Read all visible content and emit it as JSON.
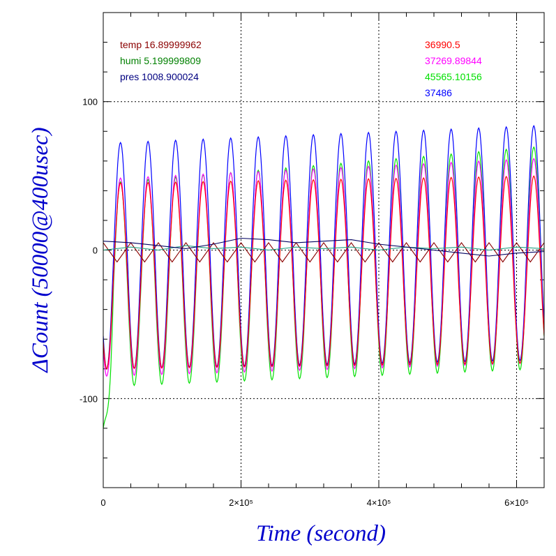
{
  "chart_data": {
    "type": "line",
    "xlabel": "Time (second)",
    "ylabel": "ΔCount (50000@400usec)",
    "xlim": [
      0,
      640000
    ],
    "ylim": [
      -160,
      160
    ],
    "grid": true,
    "x_ticks": [
      {
        "value": 0,
        "label": "0"
      },
      {
        "value": 200000,
        "label": "2×10⁵"
      },
      {
        "value": 400000,
        "label": "4×10⁵"
      },
      {
        "value": 600000,
        "label": "6×10⁵"
      }
    ],
    "y_ticks": [
      {
        "value": 100,
        "label": "100"
      },
      {
        "value": 0,
        "label": "0"
      },
      {
        "value": -100,
        "label": "-100"
      }
    ],
    "legend_placement": "top",
    "env_legend": [
      {
        "text": "temp 16.89999962",
        "color": "#8b0000"
      },
      {
        "text": "humi 5.199999809",
        "color": "#008000"
      },
      {
        "text": "pres 1008.900024",
        "color": "#000080"
      }
    ],
    "series_legend": [
      {
        "text": "36990.5",
        "color": "#ff0000"
      },
      {
        "text": "37269.89844",
        "color": "#ff00ff"
      },
      {
        "text": "45565.10156",
        "color": "#00e000"
      },
      {
        "text": "37486",
        "color": "#0000ff"
      }
    ],
    "oscillation": {
      "period": 40000,
      "first_peak_x": 25000,
      "peaks": [
        {
          "color": "#0000ff",
          "start": 72,
          "end": 84
        },
        {
          "color": "#00e000",
          "start": 45,
          "end": 70
        },
        {
          "color": "#ff00ff",
          "start": 48,
          "end": 62
        },
        {
          "color": "#ff0000",
          "start": 45,
          "end": 50
        }
      ],
      "troughs": [
        {
          "color": "#0000ff",
          "start": -80,
          "end": -74
        },
        {
          "color": "#00e000",
          "start": -92,
          "end": -80
        },
        {
          "color": "#ff00ff",
          "start": -85,
          "end": -76
        },
        {
          "color": "#ff0000",
          "start": -80,
          "end": -76
        }
      ],
      "green_initial_min": -120
    },
    "slow_series": [
      {
        "name": "temp",
        "color": "#8b0000",
        "points": [
          [
            0,
            5
          ],
          [
            20000,
            -8
          ],
          [
            40000,
            5
          ],
          [
            60000,
            -8
          ],
          [
            80000,
            5
          ],
          [
            100000,
            -8
          ],
          [
            120000,
            5
          ],
          [
            140000,
            -8
          ],
          [
            160000,
            5
          ],
          [
            180000,
            -8
          ],
          [
            200000,
            5
          ],
          [
            220000,
            -8
          ],
          [
            240000,
            5
          ],
          [
            260000,
            -8
          ],
          [
            280000,
            5
          ],
          [
            300000,
            -8
          ],
          [
            320000,
            5
          ],
          [
            340000,
            -8
          ],
          [
            360000,
            5
          ],
          [
            380000,
            -8
          ],
          [
            400000,
            5
          ],
          [
            420000,
            -8
          ],
          [
            440000,
            5
          ],
          [
            460000,
            -8
          ],
          [
            480000,
            5
          ],
          [
            500000,
            -8
          ],
          [
            520000,
            5
          ],
          [
            540000,
            -8
          ],
          [
            560000,
            5
          ],
          [
            580000,
            -8
          ],
          [
            600000,
            5
          ],
          [
            620000,
            -8
          ],
          [
            640000,
            5
          ]
        ]
      },
      {
        "name": "humi",
        "color": "#20a080",
        "points": [
          [
            0,
            0
          ],
          [
            40000,
            2
          ],
          [
            80000,
            0
          ],
          [
            120000,
            3
          ],
          [
            160000,
            1
          ],
          [
            200000,
            2
          ],
          [
            240000,
            0
          ],
          [
            280000,
            2
          ],
          [
            320000,
            1
          ],
          [
            360000,
            2
          ],
          [
            400000,
            0
          ],
          [
            440000,
            2
          ],
          [
            480000,
            1
          ],
          [
            520000,
            2
          ],
          [
            560000,
            0
          ],
          [
            600000,
            2
          ],
          [
            640000,
            1
          ]
        ]
      },
      {
        "name": "pres",
        "color": "#000060",
        "points": [
          [
            0,
            6
          ],
          [
            40000,
            5
          ],
          [
            80000,
            3
          ],
          [
            120000,
            1
          ],
          [
            160000,
            4
          ],
          [
            200000,
            8
          ],
          [
            240000,
            7
          ],
          [
            280000,
            5
          ],
          [
            320000,
            6
          ],
          [
            360000,
            7
          ],
          [
            400000,
            4
          ],
          [
            440000,
            2
          ],
          [
            480000,
            0
          ],
          [
            520000,
            -2
          ],
          [
            560000,
            -4
          ],
          [
            600000,
            -2
          ],
          [
            640000,
            -1
          ]
        ]
      }
    ]
  }
}
